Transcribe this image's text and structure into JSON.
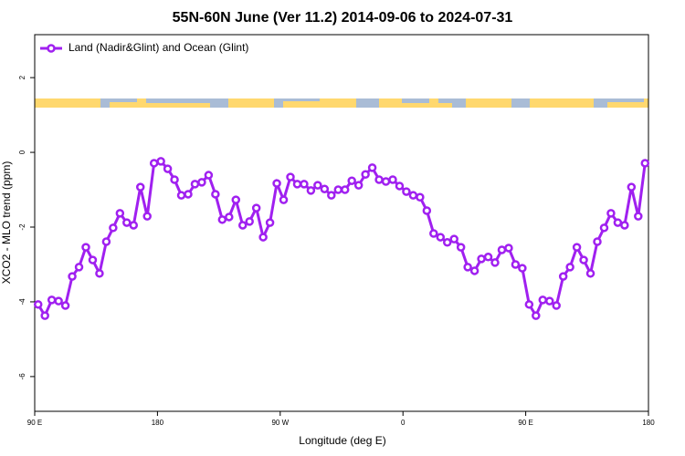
{
  "chart_data": {
    "type": "line",
    "title": "55N-60N June (Ver 11.2)   2014-09-06 to 2024-07-31",
    "xlabel": "Longitude (deg E)",
    "ylabel": "XCO2 - MLO trend (ppm)",
    "x": [
      92.5,
      97.5,
      102.5,
      107.5,
      112.5,
      117.5,
      122.5,
      127.5,
      132.5,
      137.5,
      142.5,
      147.5,
      152.5,
      157.5,
      162.5,
      167.5,
      172.5,
      177.5,
      182.5,
      187.5,
      192.5,
      197.5,
      202.5,
      207.5,
      212.5,
      217.5,
      222.5,
      227.5,
      232.5,
      237.5,
      242.5,
      247.5,
      252.5,
      257.5,
      262.5,
      267.5,
      272.5,
      277.5,
      282.5,
      287.5,
      292.5,
      297.5,
      302.5,
      307.5,
      312.5,
      317.5,
      322.5,
      327.5,
      332.5,
      337.5,
      342.5,
      347.5,
      352.5,
      357.5,
      362.5,
      367.5,
      372.5,
      377.5,
      382.5,
      387.5,
      392.5,
      397.5,
      402.5,
      407.5,
      412.5,
      417.5,
      422.5,
      427.5,
      432.5,
      437.5,
      442.5,
      447.5,
      452.5,
      457.5,
      462.5,
      467.5,
      472.5,
      477.5,
      482.5,
      487.5,
      492.5,
      497.5,
      502.5,
      507.5,
      512.5,
      517.5,
      522.5,
      527.5,
      532.5,
      537.5
    ],
    "series": [
      {
        "name": "Land (Nadir&Glint) and Ocean (Glint)",
        "color": "#a020f0",
        "values": [
          -4.07,
          -4.37,
          -3.95,
          -3.98,
          -4.1,
          -3.32,
          -3.07,
          -2.54,
          -2.88,
          -3.24,
          -2.39,
          -2.02,
          -1.63,
          -1.88,
          -1.95,
          -0.93,
          -1.71,
          -0.29,
          -0.24,
          -0.44,
          -0.73,
          -1.15,
          -1.12,
          -0.85,
          -0.8,
          -0.61,
          -1.12,
          -1.8,
          -1.73,
          -1.27,
          -1.95,
          -1.85,
          -1.49,
          -2.27,
          -1.88,
          -0.83,
          -1.27,
          -0.66,
          -0.85,
          -0.85,
          -1.02,
          -0.88,
          -0.98,
          -1.15,
          -1.0,
          -1.0,
          -0.76,
          -0.88,
          -0.59,
          -0.41,
          -0.73,
          -0.78,
          -0.73,
          -0.9,
          -1.05,
          -1.15,
          -1.2,
          -1.56,
          -2.17,
          -2.27,
          -2.41,
          -2.32,
          -2.54,
          -3.07,
          -3.17,
          -2.85,
          -2.8,
          -2.95,
          -2.61,
          -2.56,
          -3.0,
          -3.1,
          -4.07,
          -4.37,
          -3.95,
          -3.98,
          -4.1,
          -3.32,
          -3.07,
          -2.54,
          -2.88,
          -3.24,
          -2.39,
          -2.02,
          -1.63,
          -1.88,
          -1.95,
          -0.93,
          -1.71,
          -0.29
        ]
      }
    ],
    "xlim": [
      90,
      540
    ],
    "xticks": [
      {
        "value": 90,
        "label": "90 E"
      },
      180,
      {
        "value": 270,
        "label": "90 W"
      },
      {
        "value": 360,
        "label": "0"
      },
      {
        "value": 450,
        "label": "90 E"
      },
      {
        "value": 540,
        "label": "180"
      }
    ],
    "ylim": [
      -6.93,
      3.15
    ],
    "yticks": [
      -6,
      -4,
      -2,
      0,
      2
    ],
    "legend": "top-left"
  }
}
